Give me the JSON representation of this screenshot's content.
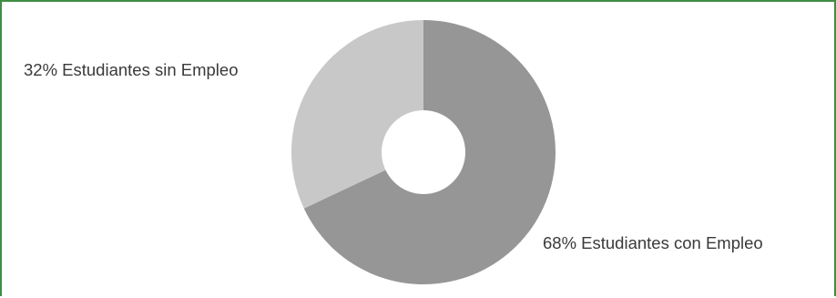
{
  "frame": {
    "border_color": "#3e8e41"
  },
  "chart_data": {
    "type": "pie",
    "title": "",
    "donut": true,
    "start_angle": "12 o'clock",
    "direction": "clockwise",
    "slices": [
      {
        "label": "68% Estudiantes con Empleo",
        "value": 68,
        "color": "#969696"
      },
      {
        "label": "32% Estudiantes sin Empleo",
        "value": 32,
        "color": "#c8c8c8"
      }
    ],
    "legend": "none"
  }
}
